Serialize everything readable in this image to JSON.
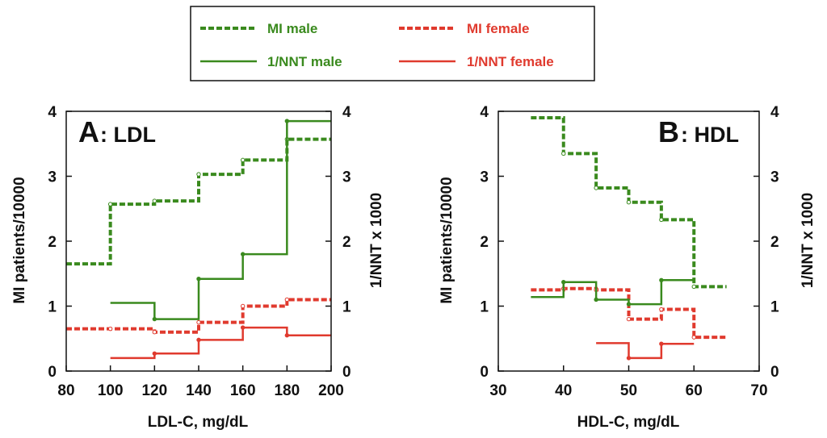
{
  "colors": {
    "male": "#3a8a1e",
    "female": "#e03a2e",
    "axis": "#111111"
  },
  "legend": {
    "entries": [
      {
        "label": "MI  male",
        "series": "male",
        "style": "dashed"
      },
      {
        "label": "MI  female",
        "series": "female",
        "style": "dashed"
      },
      {
        "label": "1/NNT  male",
        "series": "male",
        "style": "solid"
      },
      {
        "label": "1/NNT  female",
        "series": "female",
        "style": "solid"
      }
    ]
  },
  "chart_data": [
    {
      "type": "line",
      "step": true,
      "panel_letter": "A",
      "panel_name": ": LDL",
      "xlabel": "LDL-C,  mg/dL",
      "ylabel_left": "MI  patients/10000",
      "ylabel_right": "1/NNT  x  1000",
      "xlim": [
        80,
        200
      ],
      "ylim": [
        0,
        4
      ],
      "xticks": [
        "80",
        "100",
        "120",
        "140",
        "160",
        "180",
        "200"
      ],
      "yticks_left": [
        "0",
        "1",
        "2",
        "3",
        "4"
      ],
      "yticks_right": [
        "0",
        "1",
        "2",
        "3",
        "4"
      ],
      "series": [
        {
          "name": "MI male",
          "color_key": "male",
          "style": "dashed",
          "x": [
            80,
            100,
            120,
            140,
            160,
            180,
            200
          ],
          "y": [
            1.65,
            2.57,
            2.62,
            3.03,
            3.25,
            3.57,
            3.57
          ]
        },
        {
          "name": "MI female",
          "color_key": "female",
          "style": "dashed",
          "x": [
            80,
            100,
            120,
            140,
            160,
            180,
            200
          ],
          "y": [
            0.65,
            0.65,
            0.6,
            0.75,
            1.0,
            1.1,
            1.1
          ]
        },
        {
          "name": "1/NNT male",
          "color_key": "male",
          "style": "solid",
          "x": [
            100,
            120,
            140,
            160,
            180,
            200
          ],
          "y": [
            1.05,
            0.8,
            1.42,
            1.8,
            3.85,
            3.85
          ]
        },
        {
          "name": "1/NNT female",
          "color_key": "female",
          "style": "solid",
          "x": [
            100,
            120,
            140,
            160,
            180,
            200
          ],
          "y": [
            0.2,
            0.27,
            0.48,
            0.67,
            0.55,
            0.55
          ]
        }
      ]
    },
    {
      "type": "line",
      "step": true,
      "panel_letter": "B",
      "panel_name": ": HDL",
      "xlabel": "HDL-C,  mg/dL",
      "ylabel_left": "MI  patients/10000",
      "ylabel_right": "1/NNT  x  1000",
      "xlim": [
        30,
        70
      ],
      "ylim": [
        0,
        4
      ],
      "xticks": [
        "30",
        "40",
        "50",
        "60",
        "70"
      ],
      "yticks_left": [
        "0",
        "1",
        "2",
        "3",
        "4"
      ],
      "yticks_right": [
        "0",
        "1",
        "2",
        "3",
        "4"
      ],
      "series": [
        {
          "name": "MI male",
          "color_key": "male",
          "style": "dashed",
          "x": [
            35,
            40,
            45,
            50,
            55,
            60,
            65
          ],
          "y": [
            3.9,
            3.35,
            2.82,
            2.6,
            2.33,
            1.3,
            1.3
          ]
        },
        {
          "name": "MI female",
          "color_key": "female",
          "style": "dashed",
          "x": [
            35,
            40,
            45,
            50,
            55,
            60,
            65
          ],
          "y": [
            1.25,
            1.27,
            1.25,
            0.8,
            0.95,
            0.52,
            0.52
          ]
        },
        {
          "name": "1/NNT male",
          "color_key": "male",
          "style": "solid",
          "x": [
            35,
            40,
            45,
            50,
            55,
            60
          ],
          "y": [
            1.14,
            1.37,
            1.1,
            1.03,
            1.4,
            1.4
          ]
        },
        {
          "name": "1/NNT female",
          "color_key": "female",
          "style": "solid",
          "x": [
            45,
            50,
            55,
            60
          ],
          "y": [
            0.43,
            0.2,
            0.42,
            0.42
          ]
        }
      ]
    }
  ]
}
